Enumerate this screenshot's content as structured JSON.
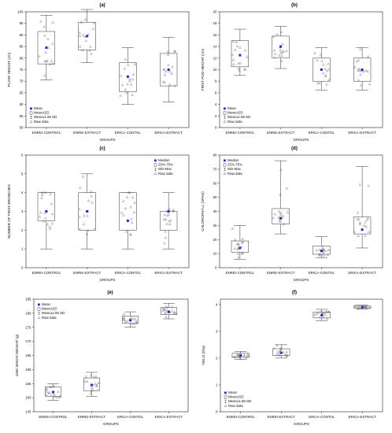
{
  "chart_data": [
    {
      "type": "box",
      "title": "(a)",
      "xlabel": "GROUPS",
      "ylabel": "PLANT HEIGHT (cm)",
      "ylim": [
        50,
        100
      ],
      "yticks": [
        50,
        55,
        60,
        65,
        70,
        75,
        80,
        85,
        90,
        95,
        100
      ],
      "categories": [
        "ENREI-CONTROL",
        "ENREI-EXTRACT",
        "ERICA-CONTOL",
        "ERICA-EXTRACT"
      ],
      "box_style": "mean_sd",
      "legend": [
        "Mean",
        "Mean±SD",
        "Mean±1.96 SD",
        "Raw data"
      ],
      "legend_position": "bottom-left",
      "boxes": [
        {
          "mean": 84.5,
          "box_low": 77.5,
          "box_high": 91.5,
          "whisker_low": 70.5,
          "whisker_high": 98.5
        },
        {
          "mean": 89.5,
          "box_low": 83.5,
          "box_high": 95.5,
          "whisker_low": 78.0,
          "whisker_high": 101.0
        },
        {
          "mean": 72.0,
          "box_low": 65.5,
          "box_high": 78.0,
          "whisker_low": 60.0,
          "whisker_high": 84.5
        },
        {
          "mean": 75.0,
          "box_low": 68.0,
          "box_high": 82.0,
          "whisker_low": 61.0,
          "whisker_high": 89.0
        }
      ]
    },
    {
      "type": "box",
      "title": "(b)",
      "xlabel": "GROUPS",
      "ylabel": "FIRST POD HEIGHT (cm)",
      "ylim": [
        0,
        20
      ],
      "yticks": [
        0,
        2,
        4,
        6,
        8,
        10,
        12,
        14,
        16,
        18,
        20
      ],
      "categories": [
        "ENREI-CONTROL",
        "ENREI-EXTRACT",
        "ERICA-CONTOL",
        "ERICA-EXTRACT"
      ],
      "box_style": "mean_sd",
      "legend": [
        "Mean",
        "Mean±SD",
        "Mean±1.96 SD",
        "Raw data"
      ],
      "legend_position": "bottom-left",
      "boxes": [
        {
          "mean": 12.5,
          "box_low": 10.5,
          "box_high": 15.0,
          "whisker_low": 9.0,
          "whisker_high": 17.0
        },
        {
          "mean": 14.0,
          "box_low": 12.0,
          "box_high": 15.8,
          "whisker_low": 10.2,
          "whisker_high": 17.5
        },
        {
          "mean": 10.0,
          "box_low": 8.0,
          "box_high": 12.0,
          "whisker_low": 6.5,
          "whisker_high": 13.8
        },
        {
          "mean": 10.0,
          "box_low": 8.0,
          "box_high": 12.0,
          "whisker_low": 6.5,
          "whisker_high": 13.8
        }
      ]
    },
    {
      "type": "box",
      "title": "(c)",
      "xlabel": "GROUPS",
      "ylabel": "NUMBER OF FIRST BRANCHES",
      "ylim": [
        0,
        6
      ],
      "yticks": [
        0,
        1,
        2,
        3,
        4,
        5,
        6
      ],
      "categories": [
        "ENREI-CONTROL",
        "ENREI-EXTRACT",
        "ERICA-CONTOL",
        "ERICA-EXTRACT"
      ],
      "box_style": "median_quartile",
      "legend": [
        "Median",
        "25%-75%",
        "Min-Max",
        "Raw data"
      ],
      "legend_position": "top-right",
      "boxes": [
        {
          "mean": 3.0,
          "box_low": 2.5,
          "box_high": 4.0,
          "whisker_low": 1.0,
          "whisker_high": 4.0
        },
        {
          "mean": 3.0,
          "box_low": 2.0,
          "box_high": 4.0,
          "whisker_low": 1.0,
          "whisker_high": 5.0
        },
        {
          "mean": 2.5,
          "box_low": 2.0,
          "box_high": 4.0,
          "whisker_low": 1.0,
          "whisker_high": 4.0
        },
        {
          "mean": 3.0,
          "box_low": 2.0,
          "box_high": 3.0,
          "whisker_low": 1.0,
          "whisker_high": 4.0
        }
      ]
    },
    {
      "type": "box",
      "title": "(d)",
      "xlabel": "GROUPS",
      "ylabel": "CHLOROPHYLL (SPAD)",
      "ylim": [
        0,
        80
      ],
      "yticks": [
        0,
        10,
        20,
        30,
        40,
        50,
        60,
        70,
        80
      ],
      "categories": [
        "ENREI-CONTROL",
        "ENREI-EXTRACT",
        "ERICA-CONTOL",
        "ERICA-EXTRACT"
      ],
      "box_style": "median_quartile",
      "legend": [
        "Median",
        "25%-75%",
        "Min-Max",
        "Raw data"
      ],
      "legend_position": "top-left",
      "boxes": [
        {
          "mean": 14.0,
          "box_low": 11.0,
          "box_high": 19.0,
          "whisker_low": 6.0,
          "whisker_high": 30.0
        },
        {
          "mean": 35.0,
          "box_low": 31.0,
          "box_high": 42.0,
          "whisker_low": 24.0,
          "whisker_high": 76.0
        },
        {
          "mean": 12.0,
          "box_low": 9.5,
          "box_high": 15.5,
          "whisker_low": 7.0,
          "whisker_high": 22.0
        },
        {
          "mean": 27.0,
          "box_low": 24.0,
          "box_high": 36.0,
          "whisker_low": 14.0,
          "whisker_high": 72.0
        }
      ]
    },
    {
      "type": "box",
      "title": "(e)",
      "xlabel": "GROUPS",
      "ylabel": "1000 SEEDS WEIGHT (g)",
      "ylim": [
        145,
        185
      ],
      "yticks": [
        145,
        150,
        155,
        160,
        165,
        170,
        175,
        180,
        185
      ],
      "categories": [
        "ENREI-CONTROL",
        "ENREI-EXTRACT",
        "ERICA-CONTOL",
        "ERICA-EXTRACT"
      ],
      "box_style": "mean_sd",
      "legend": [
        "Mean",
        "Mean±SD",
        "Mean±1.96 SD",
        "Raw data"
      ],
      "legend_position": "top-left",
      "boxes": [
        {
          "mean": 152.0,
          "box_low": 150.5,
          "box_high": 153.8,
          "whisker_low": 149.0,
          "whisker_high": 155.0
        },
        {
          "mean": 154.5,
          "box_low": 152.5,
          "box_high": 157.0,
          "whisker_low": 150.5,
          "whisker_high": 159.0
        },
        {
          "mean": 177.5,
          "box_low": 176.5,
          "box_high": 179.0,
          "whisker_low": 175.0,
          "whisker_high": 180.5
        },
        {
          "mean": 180.5,
          "box_low": 179.5,
          "box_high": 182.0,
          "whisker_low": 178.0,
          "whisker_high": 183.5
        }
      ]
    },
    {
      "type": "box",
      "title": "(f)",
      "xlabel": "GROUPS",
      "ylabel": "YIELD (t/ha)",
      "ylim": [
        0,
        4.2
      ],
      "yticks": [
        0,
        1,
        2,
        3,
        4
      ],
      "categories": [
        "ENREI-CONTROL",
        "ENREI-EXTRACT",
        "ERICA-CONTOL",
        "ERICA-EXTRACT"
      ],
      "box_style": "mean_sd",
      "legend": [
        "Mean",
        "Mean±SD",
        "Mean±1.96 SD",
        "Raw data"
      ],
      "legend_position": "bottom-left",
      "boxes": [
        {
          "mean": 2.1,
          "box_low": 2.03,
          "box_high": 2.18,
          "whisker_low": 1.95,
          "whisker_high": 2.25
        },
        {
          "mean": 2.2,
          "box_low": 2.1,
          "box_high": 2.35,
          "whisker_low": 2.0,
          "whisker_high": 2.5
        },
        {
          "mean": 3.6,
          "box_low": 3.5,
          "box_high": 3.72,
          "whisker_low": 3.4,
          "whisker_high": 3.82
        },
        {
          "mean": 3.9,
          "box_low": 3.87,
          "box_high": 3.94,
          "whisker_low": 3.83,
          "whisker_high": 3.98
        }
      ]
    }
  ]
}
